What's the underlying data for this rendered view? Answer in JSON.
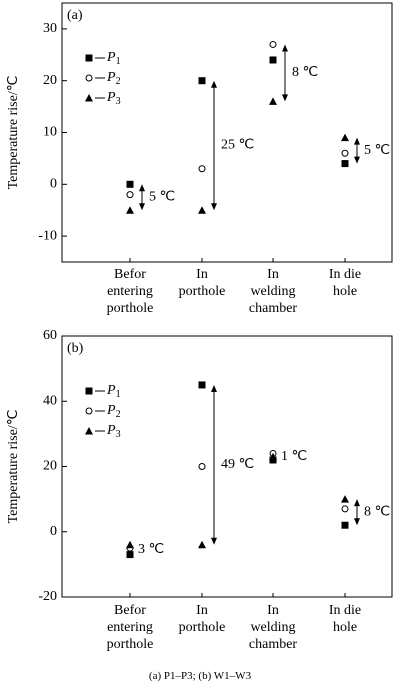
{
  "chart_data": [
    {
      "type": "scatter",
      "panel_label": "(a)",
      "ylabel": "Temperature rise/℃",
      "categories": [
        "Befor\nentering\nporthole",
        "In\nporthole",
        "In\nwelding\nchamber",
        "In die\nhole"
      ],
      "ylim": [
        -15,
        35
      ],
      "yticks": [
        -10,
        0,
        10,
        20,
        30
      ],
      "legend": "upper left",
      "series": [
        {
          "name": "P1",
          "color": "#000000",
          "marker": "square",
          "values": [
            0,
            20,
            24,
            4
          ]
        },
        {
          "name": "P2",
          "color": "#000000",
          "marker": "circle",
          "values": [
            -2,
            3,
            27,
            6
          ]
        },
        {
          "name": "P3",
          "color": "#000000",
          "marker": "triangle",
          "values": [
            -5,
            -5,
            16,
            9
          ]
        }
      ],
      "annotations": [
        "5 ℃",
        "25 ℃",
        "8 ℃",
        "5 ℃"
      ]
    },
    {
      "type": "scatter",
      "panel_label": "(b)",
      "ylabel": "Temperature rise/℃",
      "categories": [
        "Befor\nentering\nporthole",
        "In\nporthole",
        "In\nwelding\nchamber",
        "In die\nhole"
      ],
      "ylim": [
        -20,
        60
      ],
      "yticks": [
        -20,
        0,
        20,
        40,
        60
      ],
      "legend": "upper left",
      "series": [
        {
          "name": "P1",
          "color": "#000000",
          "marker": "square",
          "values": [
            -7,
            45,
            22,
            2
          ]
        },
        {
          "name": "P2",
          "color": "#000000",
          "marker": "circle",
          "values": [
            -5,
            20,
            24,
            7
          ]
        },
        {
          "name": "P3",
          "color": "#000000",
          "marker": "triangle",
          "values": [
            -4,
            -4,
            23,
            10
          ]
        }
      ],
      "annotations": [
        "3 ℃",
        "49 ℃",
        "1 ℃",
        "8 ℃"
      ]
    }
  ],
  "caption": "(a) P1–P3; (b) W1–W3"
}
